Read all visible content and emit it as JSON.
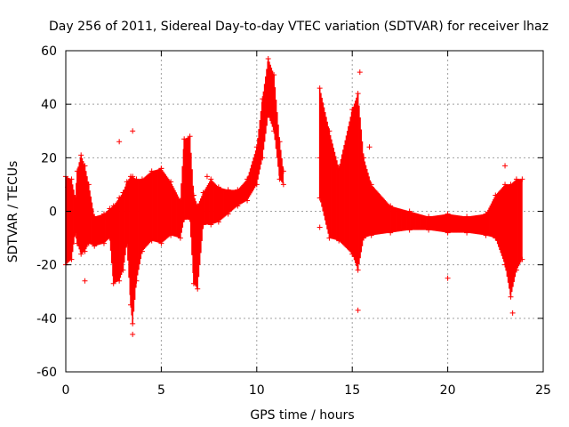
{
  "chart_data": {
    "type": "scatter",
    "title": "Day 256 of 2011, Sidereal Day-to-day VTEC variation (SDTVAR) for receiver lhaz",
    "xlabel": "GPS time / hours",
    "ylabel": "SDTVAR / TECUs",
    "xlim": [
      0,
      25
    ],
    "ylim": [
      -60,
      60
    ],
    "xticks": [
      0,
      5,
      10,
      15,
      20,
      25
    ],
    "yticks": [
      -60,
      -40,
      -20,
      0,
      20,
      40,
      60
    ],
    "grid": true,
    "series_color": "#ff0000",
    "marker": "+",
    "envelope": [
      {
        "x": 0.0,
        "lo": -20,
        "hi": 13
      },
      {
        "x": 0.3,
        "lo": -18,
        "hi": 12
      },
      {
        "x": 0.5,
        "lo": -8,
        "hi": 5
      },
      {
        "x": 0.6,
        "lo": -12,
        "hi": 15
      },
      {
        "x": 0.8,
        "lo": -16,
        "hi": 21
      },
      {
        "x": 1.0,
        "lo": -15,
        "hi": 17
      },
      {
        "x": 1.2,
        "lo": -12,
        "hi": 10
      },
      {
        "x": 1.5,
        "lo": -13,
        "hi": -2
      },
      {
        "x": 2.0,
        "lo": -12,
        "hi": -1
      },
      {
        "x": 2.3,
        "lo": -10,
        "hi": 1
      },
      {
        "x": 2.5,
        "lo": -27,
        "hi": 2
      },
      {
        "x": 2.8,
        "lo": -26,
        "hi": 5
      },
      {
        "x": 3.0,
        "lo": -22,
        "hi": 7
      },
      {
        "x": 3.2,
        "lo": -12,
        "hi": 11
      },
      {
        "x": 3.4,
        "lo": -35,
        "hi": 13
      },
      {
        "x": 3.5,
        "lo": -42,
        "hi": 13
      },
      {
        "x": 3.7,
        "lo": -26,
        "hi": 12
      },
      {
        "x": 4.0,
        "lo": -15,
        "hi": 12
      },
      {
        "x": 4.5,
        "lo": -11,
        "hi": 15
      },
      {
        "x": 5.0,
        "lo": -12,
        "hi": 16
      },
      {
        "x": 5.5,
        "lo": -9,
        "hi": 11
      },
      {
        "x": 6.0,
        "lo": -10,
        "hi": 4
      },
      {
        "x": 6.2,
        "lo": -3,
        "hi": 27
      },
      {
        "x": 6.5,
        "lo": -3,
        "hi": 28
      },
      {
        "x": 6.7,
        "lo": -27,
        "hi": 6
      },
      {
        "x": 6.9,
        "lo": -29,
        "hi": 2
      },
      {
        "x": 7.2,
        "lo": -5,
        "hi": 7
      },
      {
        "x": 7.6,
        "lo": -5,
        "hi": 12
      },
      {
        "x": 8.0,
        "lo": -4,
        "hi": 9
      },
      {
        "x": 8.5,
        "lo": -1,
        "hi": 8
      },
      {
        "x": 9.0,
        "lo": 2,
        "hi": 8
      },
      {
        "x": 9.5,
        "lo": 4,
        "hi": 12
      },
      {
        "x": 10.0,
        "lo": 10,
        "hi": 24
      },
      {
        "x": 10.3,
        "lo": 20,
        "hi": 42
      },
      {
        "x": 10.6,
        "lo": 36,
        "hi": 57
      },
      {
        "x": 10.9,
        "lo": 30,
        "hi": 51
      },
      {
        "x": 11.2,
        "lo": 12,
        "hi": 26
      },
      {
        "x": 11.4,
        "lo": 10,
        "hi": 15
      },
      {
        "x": 13.3,
        "lo": 5,
        "hi": 46
      },
      {
        "x": 13.8,
        "lo": -10,
        "hi": 30
      },
      {
        "x": 14.3,
        "lo": -11,
        "hi": 16
      },
      {
        "x": 15.0,
        "lo": -16,
        "hi": 38
      },
      {
        "x": 15.3,
        "lo": -22,
        "hi": 44
      },
      {
        "x": 15.6,
        "lo": -10,
        "hi": 20
      },
      {
        "x": 16.0,
        "lo": -9,
        "hi": 10
      },
      {
        "x": 17.0,
        "lo": -8,
        "hi": 2
      },
      {
        "x": 18.0,
        "lo": -7,
        "hi": 0
      },
      {
        "x": 19.0,
        "lo": -7,
        "hi": -2
      },
      {
        "x": 20.0,
        "lo": -8,
        "hi": -1
      },
      {
        "x": 21.0,
        "lo": -8,
        "hi": -2
      },
      {
        "x": 22.0,
        "lo": -9,
        "hi": -1
      },
      {
        "x": 22.5,
        "lo": -10,
        "hi": 6
      },
      {
        "x": 23.0,
        "lo": -20,
        "hi": 10
      },
      {
        "x": 23.3,
        "lo": -32,
        "hi": 10
      },
      {
        "x": 23.6,
        "lo": -22,
        "hi": 12
      },
      {
        "x": 23.9,
        "lo": -18,
        "hi": 12
      }
    ],
    "outliers": [
      {
        "x": 3.5,
        "y": 30
      },
      {
        "x": 3.5,
        "y": -46
      },
      {
        "x": 2.8,
        "y": 26
      },
      {
        "x": 1.0,
        "y": -26
      },
      {
        "x": 7.4,
        "y": 13
      },
      {
        "x": 13.3,
        "y": 20
      },
      {
        "x": 13.3,
        "y": -6
      },
      {
        "x": 15.3,
        "y": -37
      },
      {
        "x": 15.4,
        "y": 52
      },
      {
        "x": 15.9,
        "y": 24
      },
      {
        "x": 20.0,
        "y": -25
      },
      {
        "x": 23.0,
        "y": 17
      },
      {
        "x": 23.4,
        "y": -38
      },
      {
        "x": 0.1,
        "y": 9
      },
      {
        "x": 5.0,
        "y": 16
      }
    ]
  }
}
